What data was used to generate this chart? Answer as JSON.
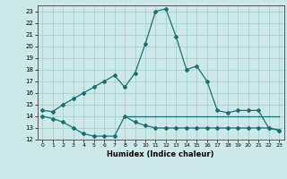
{
  "title": "",
  "xlabel": "Humidex (Indice chaleur)",
  "xlim": [
    -0.5,
    23.5
  ],
  "ylim": [
    12,
    23.5
  ],
  "yticks": [
    12,
    13,
    14,
    15,
    16,
    17,
    18,
    19,
    20,
    21,
    22,
    23
  ],
  "xticks": [
    0,
    1,
    2,
    3,
    4,
    5,
    6,
    7,
    8,
    9,
    10,
    11,
    12,
    13,
    14,
    15,
    16,
    17,
    18,
    19,
    20,
    21,
    22,
    23
  ],
  "bg_color": "#cce8e8",
  "grid_color": "#aad4d4",
  "line_color": "#1a7070",
  "line1_x": [
    0,
    1,
    2,
    3,
    4,
    5,
    6,
    7,
    8,
    9,
    10,
    11,
    12,
    13,
    14,
    15,
    16,
    17,
    18,
    19,
    20,
    21,
    22,
    23
  ],
  "line1_y": [
    14.5,
    14.4,
    15.0,
    15.5,
    16.0,
    16.5,
    17.0,
    17.5,
    16.5,
    17.7,
    20.2,
    23.0,
    23.2,
    20.8,
    18.0,
    18.3,
    17.0,
    14.5,
    14.3,
    14.5,
    14.5,
    14.5,
    13.0,
    12.8
  ],
  "line2_x": [
    0,
    1,
    2,
    3,
    4,
    5,
    6,
    7,
    8,
    9,
    10,
    11,
    12,
    13,
    14,
    15,
    16,
    17,
    18,
    19,
    20,
    21,
    22,
    23
  ],
  "line2_y": [
    14.0,
    13.8,
    13.5,
    13.0,
    12.5,
    12.3,
    12.3,
    12.3,
    14.0,
    13.5,
    13.2,
    13.0,
    13.0,
    13.0,
    13.0,
    13.0,
    13.0,
    13.0,
    13.0,
    13.0,
    13.0,
    13.0,
    13.0,
    12.8
  ],
  "line3_x": [
    8,
    9,
    10,
    11,
    12,
    13,
    14,
    15,
    16,
    17,
    18,
    19,
    20,
    21,
    22,
    23
  ],
  "line3_y": [
    14.0,
    14.0,
    14.0,
    14.0,
    14.0,
    14.0,
    14.0,
    14.0,
    14.0,
    14.0,
    14.0,
    14.0,
    14.0,
    14.0,
    14.0,
    14.0
  ]
}
